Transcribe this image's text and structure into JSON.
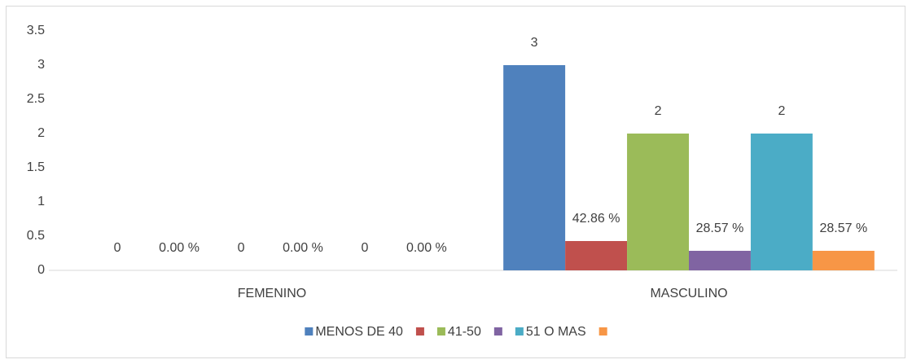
{
  "chart_data": {
    "type": "bar",
    "categories": [
      "FEMENINO",
      "MASCULINO"
    ],
    "series": [
      {
        "name": "MENOS DE 40",
        "color": "#4f81bd",
        "values": [
          0,
          3
        ]
      },
      {
        "color": "#c0504d",
        "values": [
          0,
          0.4286
        ],
        "value_labels": [
          "0.00 %",
          "42.86 %"
        ]
      },
      {
        "name": "41-50",
        "color": "#9bbb59",
        "values": [
          0,
          2
        ]
      },
      {
        "color": "#8064a2",
        "values": [
          0,
          0.2857
        ],
        "value_labels": [
          "0.00 %",
          "28.57 %"
        ]
      },
      {
        "name": "51 O MAS",
        "color": "#4bacc6",
        "values": [
          0,
          2
        ]
      },
      {
        "color": "#f79646",
        "values": [
          0,
          0.2857
        ],
        "value_labels": [
          "0.00 %",
          "28.57 %"
        ]
      }
    ],
    "ylim": [
      0,
      3.5
    ],
    "yticks": [
      0,
      0.5,
      1,
      1.5,
      2,
      2.5,
      3,
      3.5
    ],
    "grid": false,
    "legend": "bottom"
  }
}
